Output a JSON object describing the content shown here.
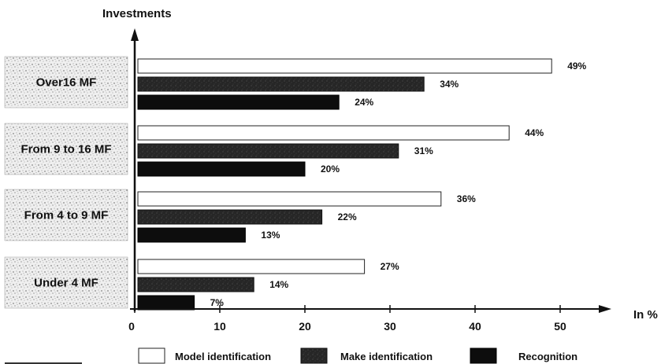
{
  "chart_data": {
    "type": "bar",
    "orientation": "horizontal",
    "ylabel": "Investments",
    "xlabel": "In %",
    "xlim": [
      0,
      50
    ],
    "xticks": [
      "0",
      "10",
      "20",
      "30",
      "40",
      "50"
    ],
    "categories": [
      "Over16 MF",
      "From 9 to 16 MF",
      "From 4 to 9 MF",
      "Under 4 MF"
    ],
    "series": [
      {
        "name": "Model identification",
        "values": [
          49,
          44,
          36,
          27
        ],
        "labels": [
          "49%",
          "44%",
          "36%",
          "27%"
        ],
        "color": "#ffffff"
      },
      {
        "name": "Make identification",
        "values": [
          34,
          31,
          22,
          14
        ],
        "labels": [
          "34%",
          "31%",
          "22%",
          "14%"
        ],
        "color": "#2a2a2a"
      },
      {
        "name": "Recognition",
        "values": [
          24,
          20,
          13,
          7
        ],
        "labels": [
          "24%",
          "20%",
          "13%",
          "7%"
        ],
        "color": "#0d0d0d"
      }
    ],
    "grid": false,
    "legend_position": "bottom"
  }
}
